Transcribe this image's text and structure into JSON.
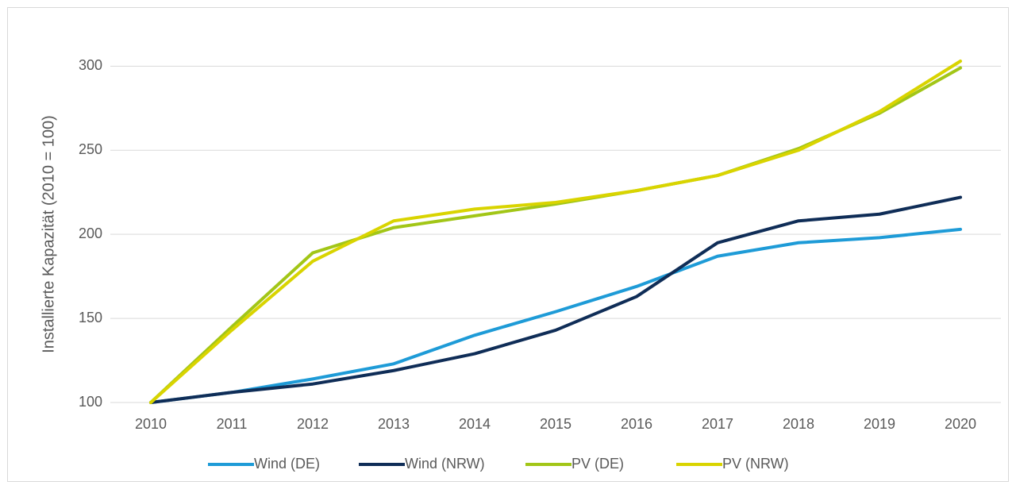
{
  "chart_data": {
    "type": "line",
    "ylabel": "Installierte Kapazität (2010 = 100)",
    "categories": [
      "2010",
      "2011",
      "2012",
      "2013",
      "2014",
      "2015",
      "2016",
      "2017",
      "2018",
      "2019",
      "2020"
    ],
    "series": [
      {
        "name": "Wind (DE)",
        "color": "#1e9bd7",
        "values": [
          100,
          106,
          114,
          123,
          140,
          154,
          169,
          187,
          195,
          198,
          203
        ]
      },
      {
        "name": "Wind (NRW)",
        "color": "#0f2d57",
        "values": [
          100,
          106,
          111,
          119,
          129,
          143,
          163,
          195,
          208,
          212,
          222
        ]
      },
      {
        "name": "PV (DE)",
        "color": "#a2c617",
        "values": [
          100,
          145,
          189,
          204,
          211,
          218,
          226,
          235,
          251,
          272,
          299
        ]
      },
      {
        "name": "PV (NRW)",
        "color": "#d9d400",
        "values": [
          100,
          143,
          184,
          208,
          215,
          219,
          226,
          235,
          250,
          273,
          303
        ]
      }
    ],
    "ylim": [
      100,
      320
    ],
    "yticks": [
      100,
      150,
      200,
      250,
      300
    ],
    "grid": true,
    "legend": "bottom"
  }
}
